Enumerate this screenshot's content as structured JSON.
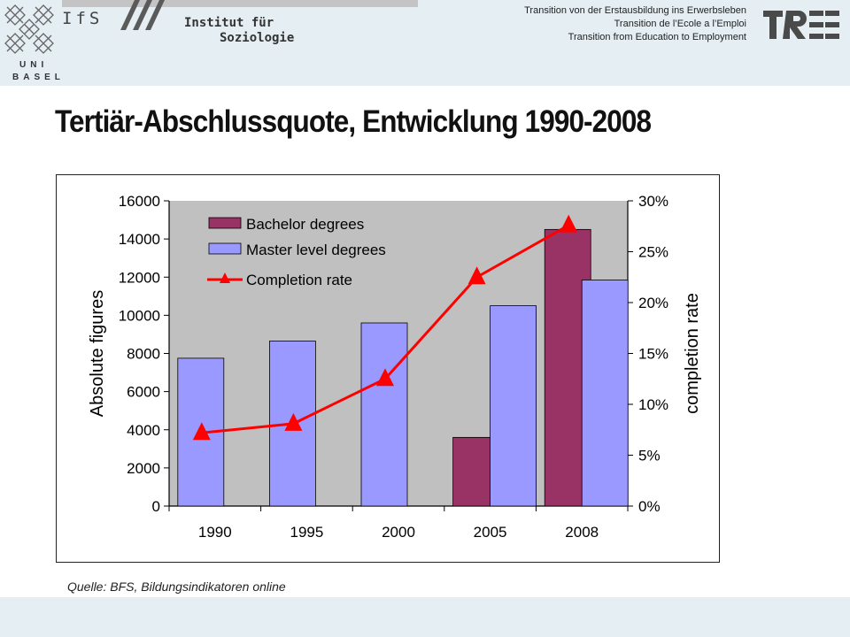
{
  "header": {
    "ifs": "IfS",
    "institute_line1": "Institut für",
    "institute_line2": "Soziologie",
    "uni": "UNI",
    "basel": "BASEL",
    "transition_de": "Transition von der Erstausbildung ins Erwerbsleben",
    "transition_fr": "Transition de l’Ecole a l’Emploi",
    "transition_en": "Transition from Education to Employment",
    "tree_logo": "TREE"
  },
  "slide": {
    "title": "Tertiär-Abschlussquote, Entwicklung 1990-2008",
    "source": "Quelle: BFS, Bildungsindikatoren online"
  },
  "colors": {
    "plot_bg": "#c0c0c0",
    "bachelor": "#993366",
    "master": "#9999ff",
    "rate": "#ff0000",
    "header_bg": "#e4eef3"
  },
  "chart_data": {
    "type": "bar",
    "categories": [
      "1990",
      "1995",
      "2000",
      "2005",
      "2008"
    ],
    "series": [
      {
        "name": "Bachelor degrees",
        "kind": "bar",
        "axis": "left",
        "values": [
          0,
          0,
          0,
          3600,
          14500
        ]
      },
      {
        "name": "Master level degrees",
        "kind": "bar",
        "axis": "left",
        "values": [
          7750,
          8650,
          9600,
          10500,
          11850
        ]
      },
      {
        "name": "Completion rate",
        "kind": "line",
        "axis": "right",
        "marker": "triangle",
        "values": [
          0.072,
          0.081,
          0.125,
          0.225,
          0.276
        ]
      }
    ],
    "ylabel": "Absolute figures",
    "y2label": "completion rate",
    "ylim": [
      0,
      16000
    ],
    "y2lim": [
      0,
      0.3
    ],
    "yticks": [
      "0",
      "2000",
      "4000",
      "6000",
      "8000",
      "10000",
      "12000",
      "14000",
      "16000"
    ],
    "y2ticks": [
      "0%",
      "5%",
      "10%",
      "15%",
      "20%",
      "25%",
      "30%"
    ],
    "legend_position": "top-left inside",
    "grid": false
  }
}
